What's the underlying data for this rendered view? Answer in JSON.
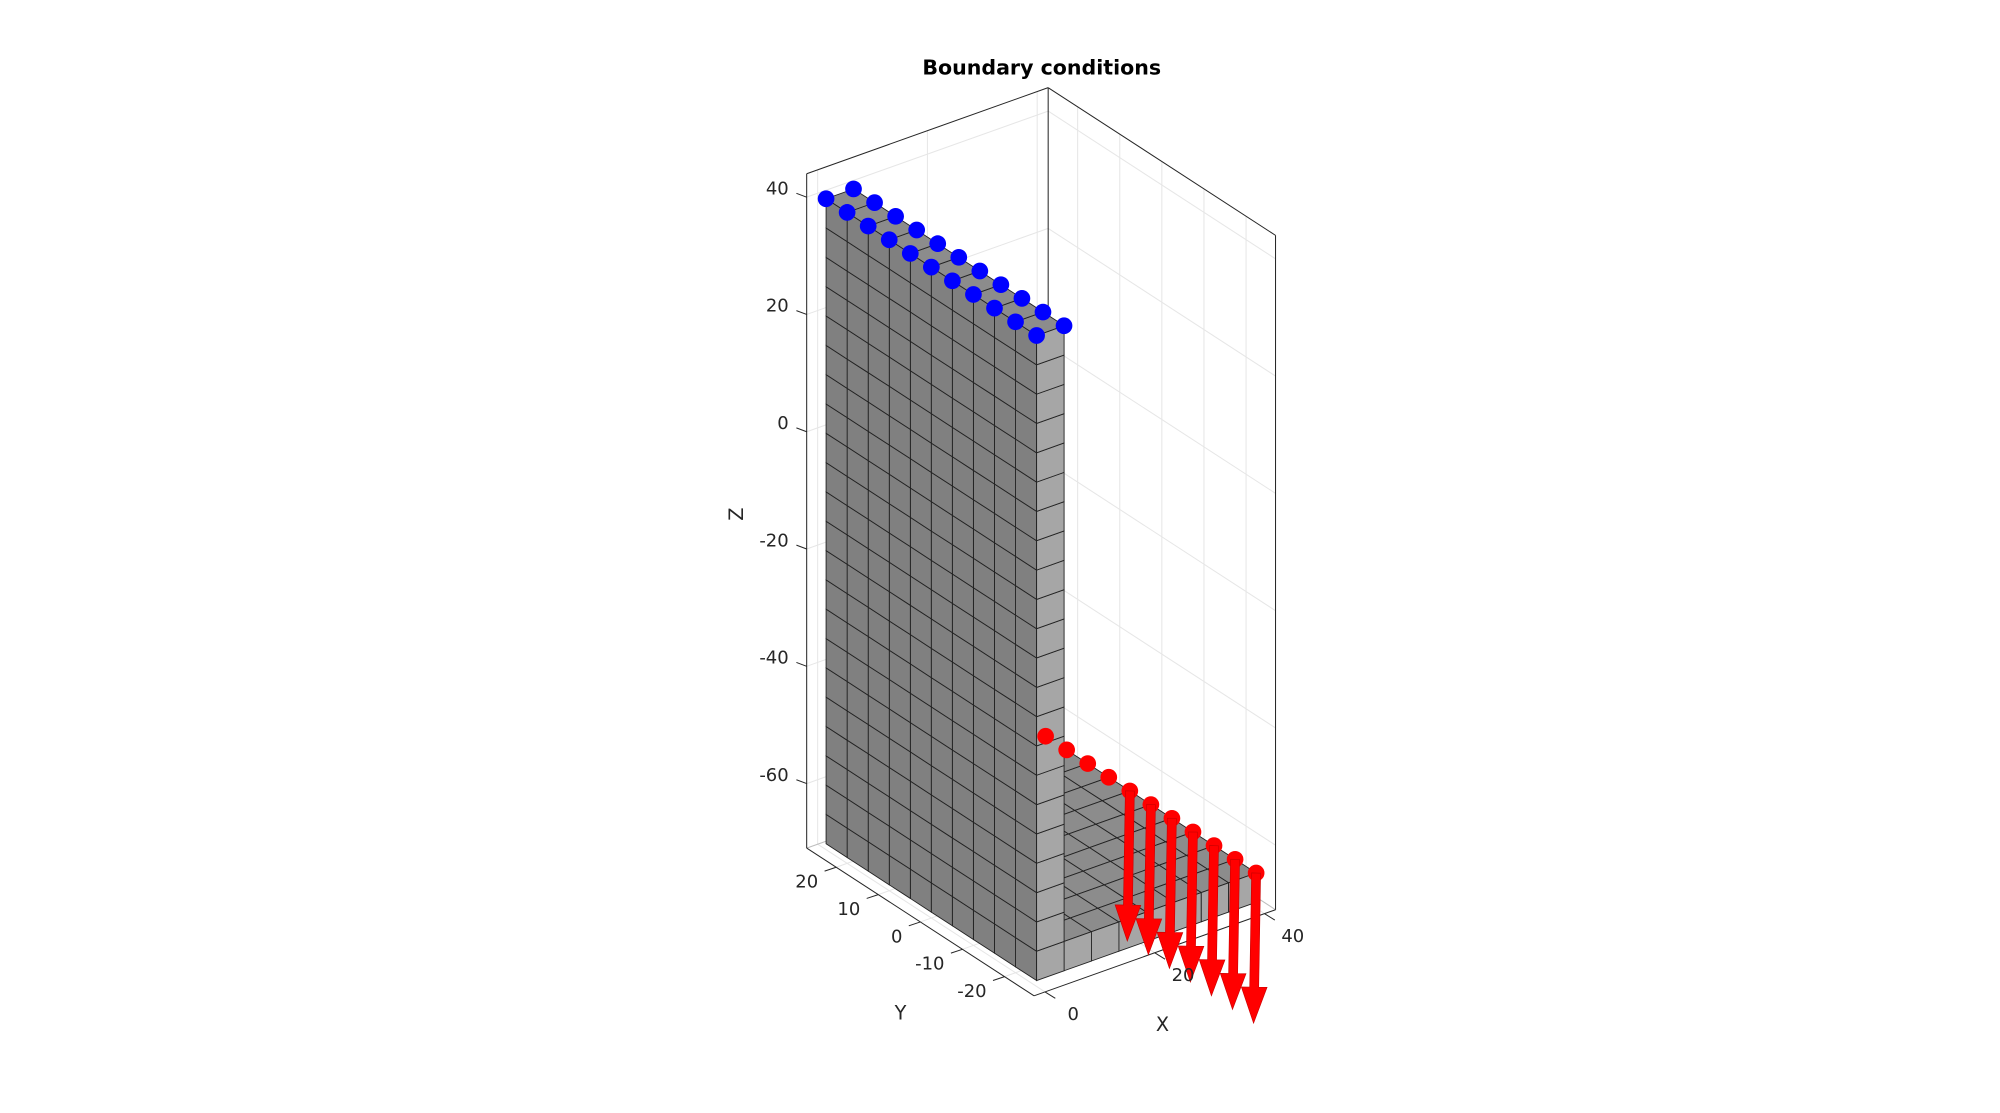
{
  "chart_data": {
    "type": "3d",
    "title": "Boundary conditions",
    "xlabel": "X",
    "ylabel": "Y",
    "zlabel": "Z",
    "xlim": [
      -2,
      42
    ],
    "ylim": [
      -27,
      27
    ],
    "zlim": [
      -71,
      44
    ],
    "xticks": [
      0,
      20,
      40
    ],
    "yticks": [
      -20,
      -10,
      0,
      10,
      20
    ],
    "zticks": [
      -60,
      -40,
      -20,
      0,
      20,
      40
    ],
    "grid": true
  }
}
